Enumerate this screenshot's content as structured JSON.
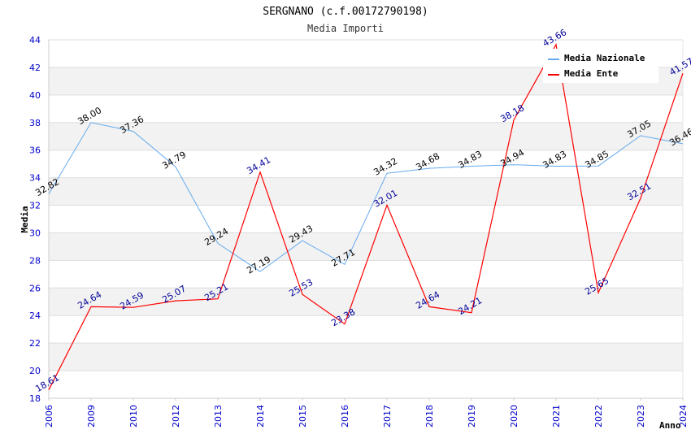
{
  "chart_data": {
    "type": "line",
    "title": "SERGNANO (c.f.00172790198)",
    "subtitle": "Media Importi",
    "xlabel": "Anno",
    "ylabel": "Media",
    "ylim": [
      18,
      44
    ],
    "yticks": [
      "18",
      "20",
      "22",
      "24",
      "26",
      "28",
      "30",
      "32",
      "34",
      "36",
      "38",
      "40",
      "42",
      "44"
    ],
    "categories": [
      "2006",
      "2009",
      "2010",
      "2012",
      "2013",
      "2014",
      "2015",
      "2016",
      "2017",
      "2018",
      "2019",
      "2020",
      "2021",
      "2022",
      "2023",
      "2024"
    ],
    "series": [
      {
        "name": "Media Nazionale",
        "color": "#66aaee",
        "values": [
          32.82,
          38.0,
          37.36,
          34.79,
          29.24,
          27.19,
          29.43,
          27.71,
          34.32,
          34.68,
          34.83,
          34.94,
          34.83,
          34.85,
          37.05,
          36.46
        ],
        "labels": [
          "32.82",
          "38.00",
          "37.36",
          "34.79",
          "29.24",
          "27.19",
          "29.43",
          "27.71",
          "34.32",
          "34.68",
          "34.83",
          "34.94",
          "34.83",
          "34.85",
          "37.05",
          "36.46"
        ]
      },
      {
        "name": "Media Ente",
        "color": "#ff0000",
        "values": [
          18.61,
          24.64,
          24.59,
          25.07,
          25.21,
          34.41,
          25.53,
          23.38,
          32.01,
          24.64,
          24.21,
          38.18,
          43.66,
          25.65,
          32.51,
          41.57
        ],
        "labels": [
          "18.61",
          "24.64",
          "24.59",
          "25.07",
          "25.21",
          "34.41",
          "25.53",
          "23.38",
          "32.01",
          "24.64",
          "24.21",
          "38.18",
          "43.66",
          "25.65",
          "32.51",
          "41.57"
        ]
      }
    ],
    "grid": true,
    "legend_position": "top-right"
  }
}
